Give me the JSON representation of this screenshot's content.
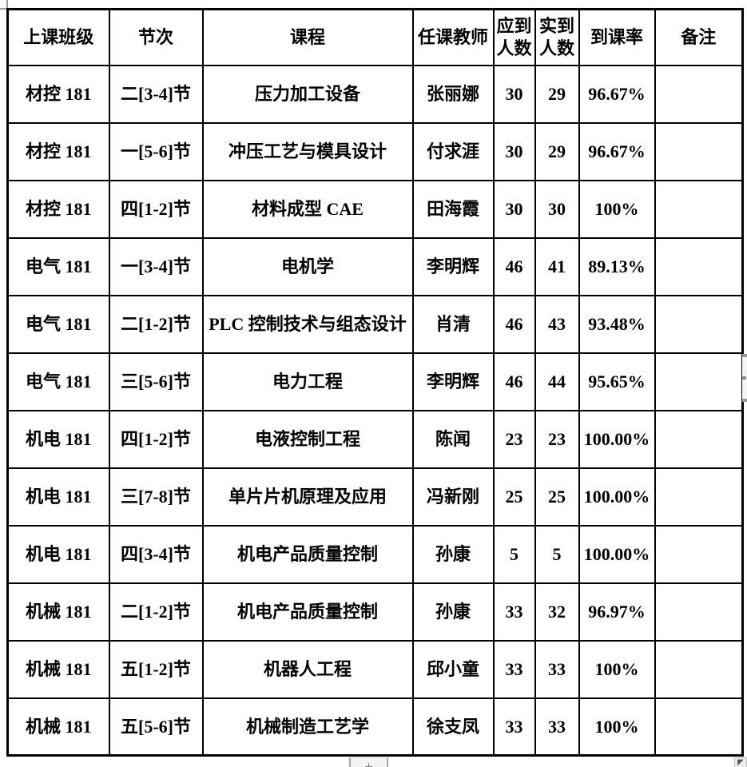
{
  "table": {
    "headers": [
      "上课班级",
      "节次",
      "课程",
      "任课教师",
      "应到\n人数",
      "实到\n人数",
      "到课率",
      "备注"
    ],
    "rows": [
      [
        "材控 181",
        "二[3-4]节",
        "压力加工设备",
        "张丽娜",
        "30",
        "29",
        "96.67%",
        ""
      ],
      [
        "材控 181",
        "一[5-6]节",
        "冲压工艺与模具设计",
        "付求涯",
        "30",
        "29",
        "96.67%",
        ""
      ],
      [
        "材控 181",
        "四[1-2]节",
        "材料成型 CAE",
        "田海霞",
        "30",
        "30",
        "100%",
        ""
      ],
      [
        "电气 181",
        "一[3-4]节",
        "电机学",
        "李明辉",
        "46",
        "41",
        "89.13%",
        ""
      ],
      [
        "电气 181",
        "二[1-2]节",
        "PLC 控制技术与组态设计",
        "肖清",
        "46",
        "43",
        "93.48%",
        ""
      ],
      [
        "电气 181",
        "三[5-6]节",
        "电力工程",
        "李明辉",
        "46",
        "44",
        "95.65%",
        ""
      ],
      [
        "机电 181",
        "四[1-2]节",
        "电液控制工程",
        "陈闻",
        "23",
        "23",
        "100.00%",
        ""
      ],
      [
        "机电 181",
        "三[7-8]节",
        "单片片机原理及应用",
        "冯新刚",
        "25",
        "25",
        "100.00%",
        ""
      ],
      [
        "机电 181",
        "四[3-4]节",
        "机电产品质量控制",
        "孙康",
        "5",
        "5",
        "100.00%",
        ""
      ],
      [
        "机械 181",
        "二[1-2]节",
        "机电产品质量控制",
        "孙康",
        "33",
        "32",
        "96.97%",
        ""
      ],
      [
        "机械 181",
        "五[1-2]节",
        "机器人工程",
        "邱小童",
        "33",
        "33",
        "100%",
        ""
      ],
      [
        "机械 181",
        "五[5-6]节",
        "机械制造工艺学",
        "徐支凤",
        "33",
        "33",
        "100%",
        ""
      ]
    ]
  },
  "controls": {
    "add_button_label": "+",
    "corner_icon_glyph": "◤"
  },
  "colors": {
    "border": "#000000",
    "text": "#000000",
    "background": "#ffffff",
    "control_gray": "#f4f4f4"
  }
}
